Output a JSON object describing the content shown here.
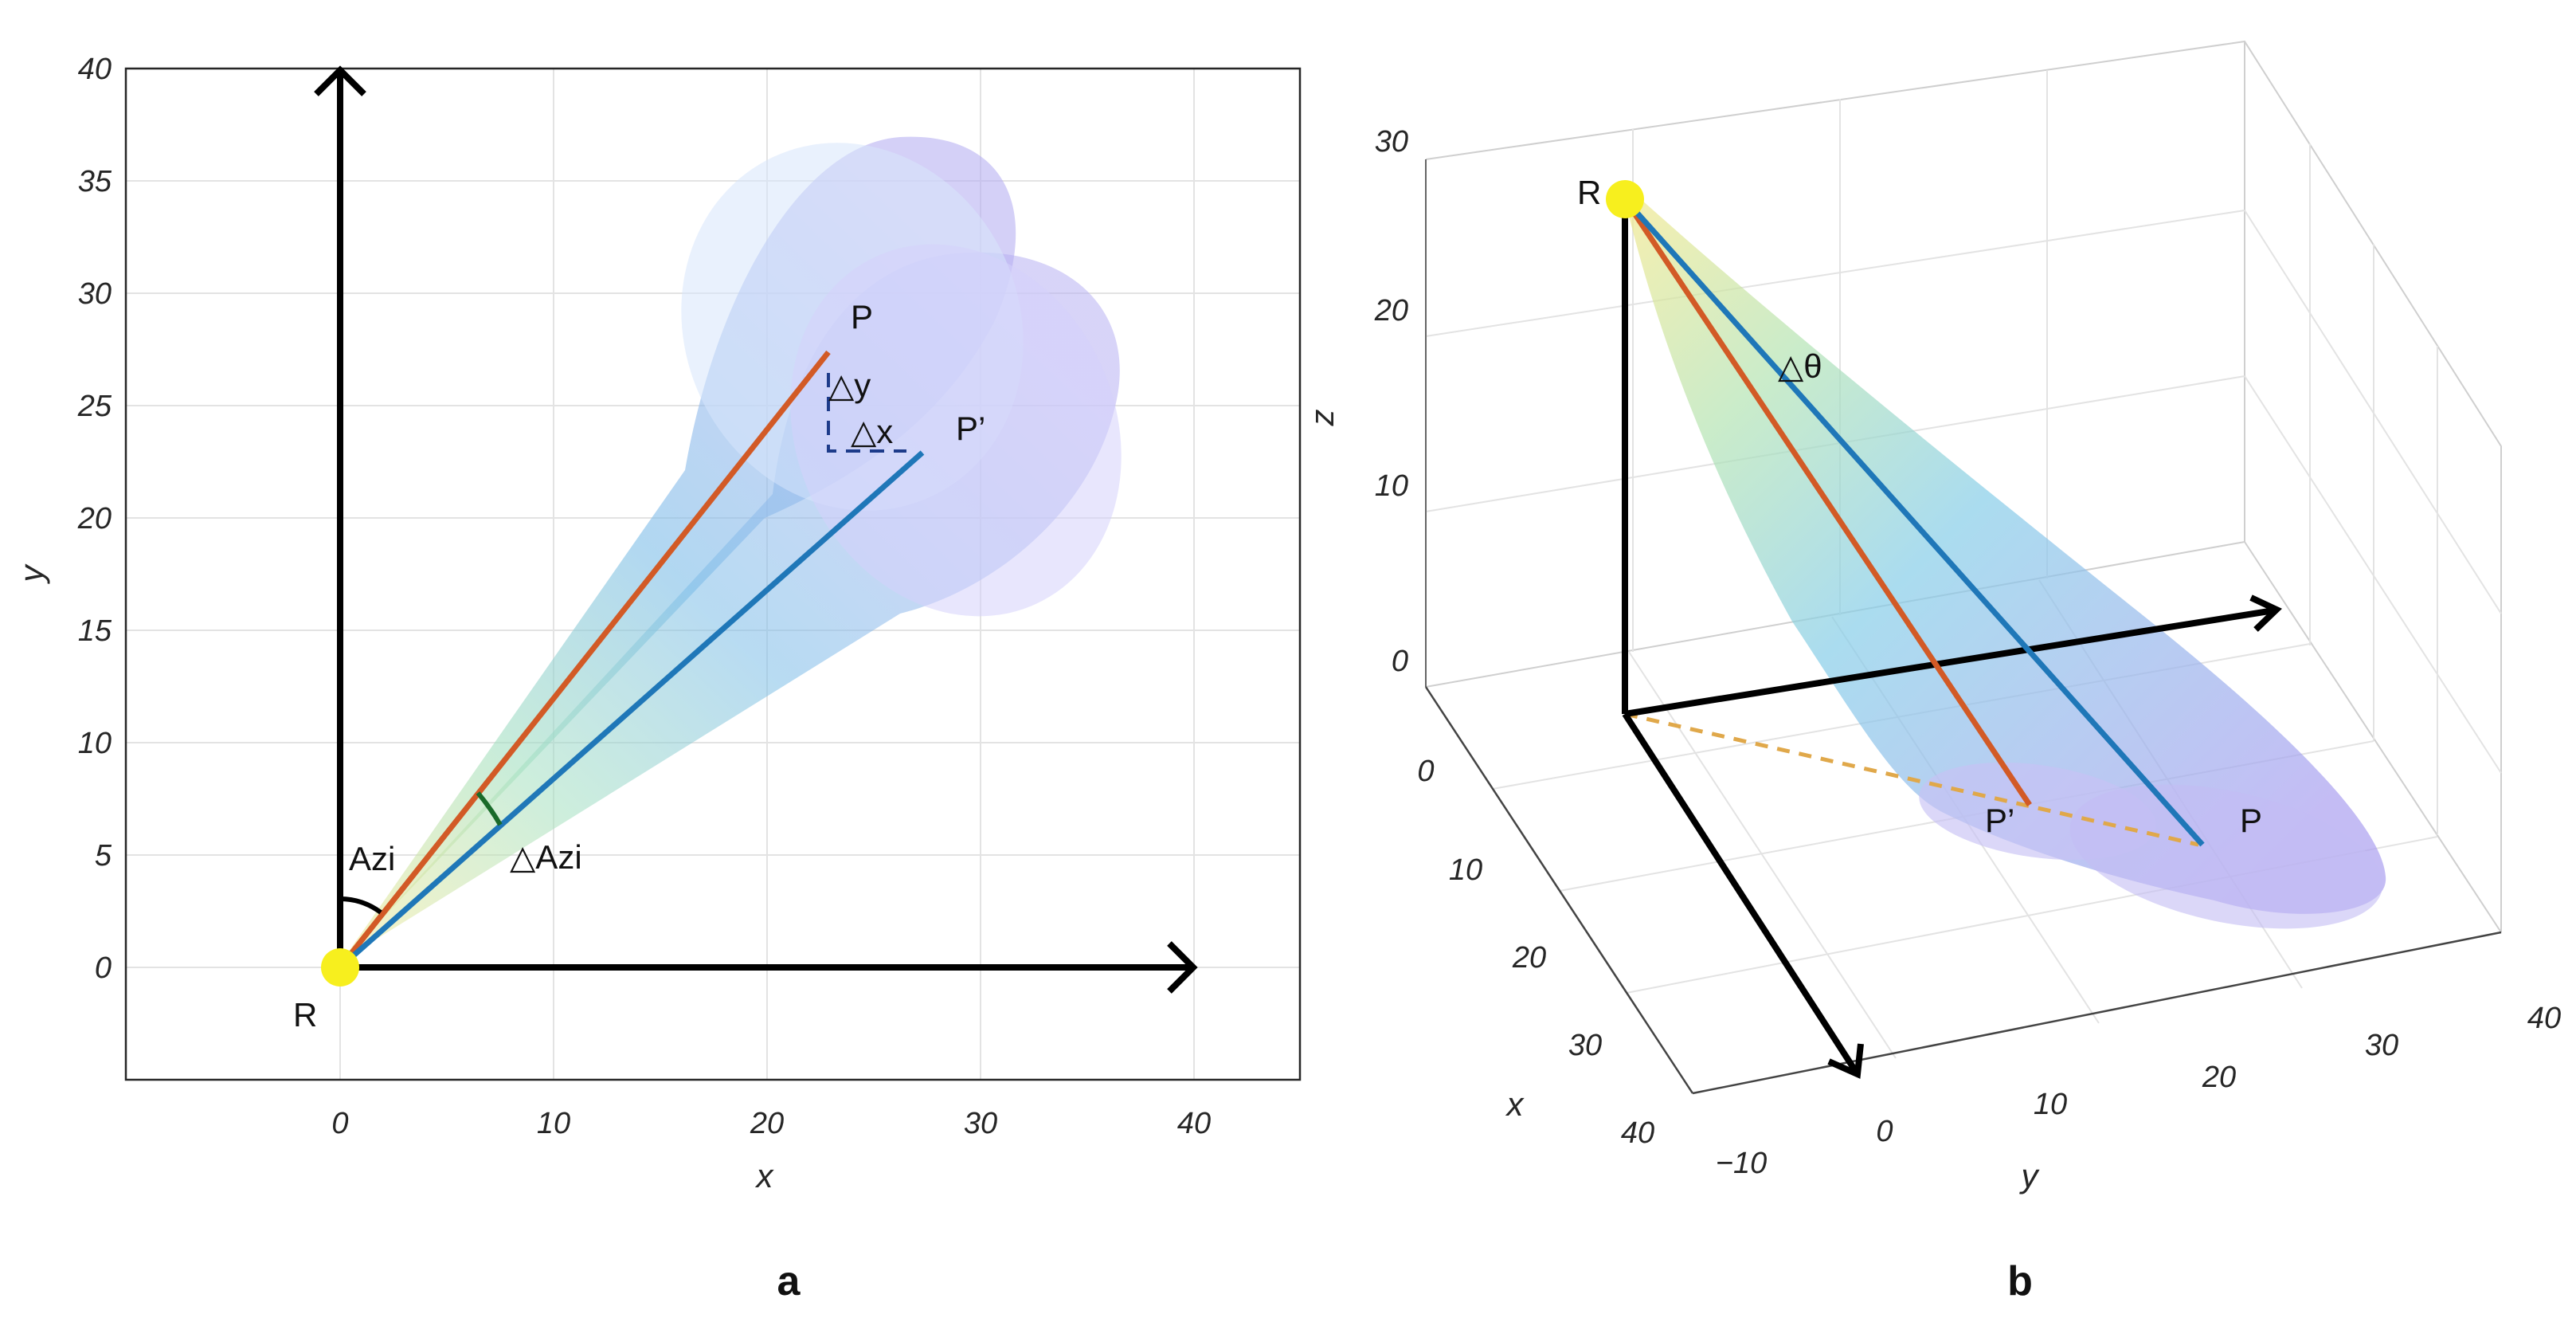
{
  "panels": [
    {
      "caption": "a",
      "xlabel": "x",
      "ylabel": "y",
      "xticks": [
        "0",
        "10",
        "20",
        "30",
        "40"
      ],
      "yticks": [
        "0",
        "5",
        "10",
        "15",
        "20",
        "25",
        "30",
        "35",
        "40"
      ],
      "point_labels": {
        "r": "R",
        "p": "P",
        "p_prime": "P’"
      },
      "annotations": {
        "azi": "Azi",
        "delta_azi": "△Azi",
        "delta_y": "△y",
        "delta_x": "△x"
      }
    },
    {
      "caption": "b",
      "xlabel": "x",
      "ylabel": "y",
      "zlabel": "z",
      "xticks": [
        "0",
        "10",
        "20",
        "30",
        "40"
      ],
      "yticks": [
        "−10",
        "0",
        "10",
        "20",
        "30",
        "40"
      ],
      "zticks": [
        "0",
        "10",
        "20",
        "30"
      ],
      "point_labels": {
        "r": "R",
        "p": "P",
        "p_prime": "P’"
      },
      "annotations": {
        "delta_theta": "△θ"
      }
    }
  ],
  "colors": {
    "source": "#f7ef1e",
    "ray_p": "#d25a26",
    "ray_p_prime": "#1f77b8",
    "footprint_line": "#e0a84a",
    "cone_near": "#f2e99a",
    "cone_mid": "#8ed7d4",
    "cone_far": "#b8b2f0",
    "axis": "#000000"
  }
}
